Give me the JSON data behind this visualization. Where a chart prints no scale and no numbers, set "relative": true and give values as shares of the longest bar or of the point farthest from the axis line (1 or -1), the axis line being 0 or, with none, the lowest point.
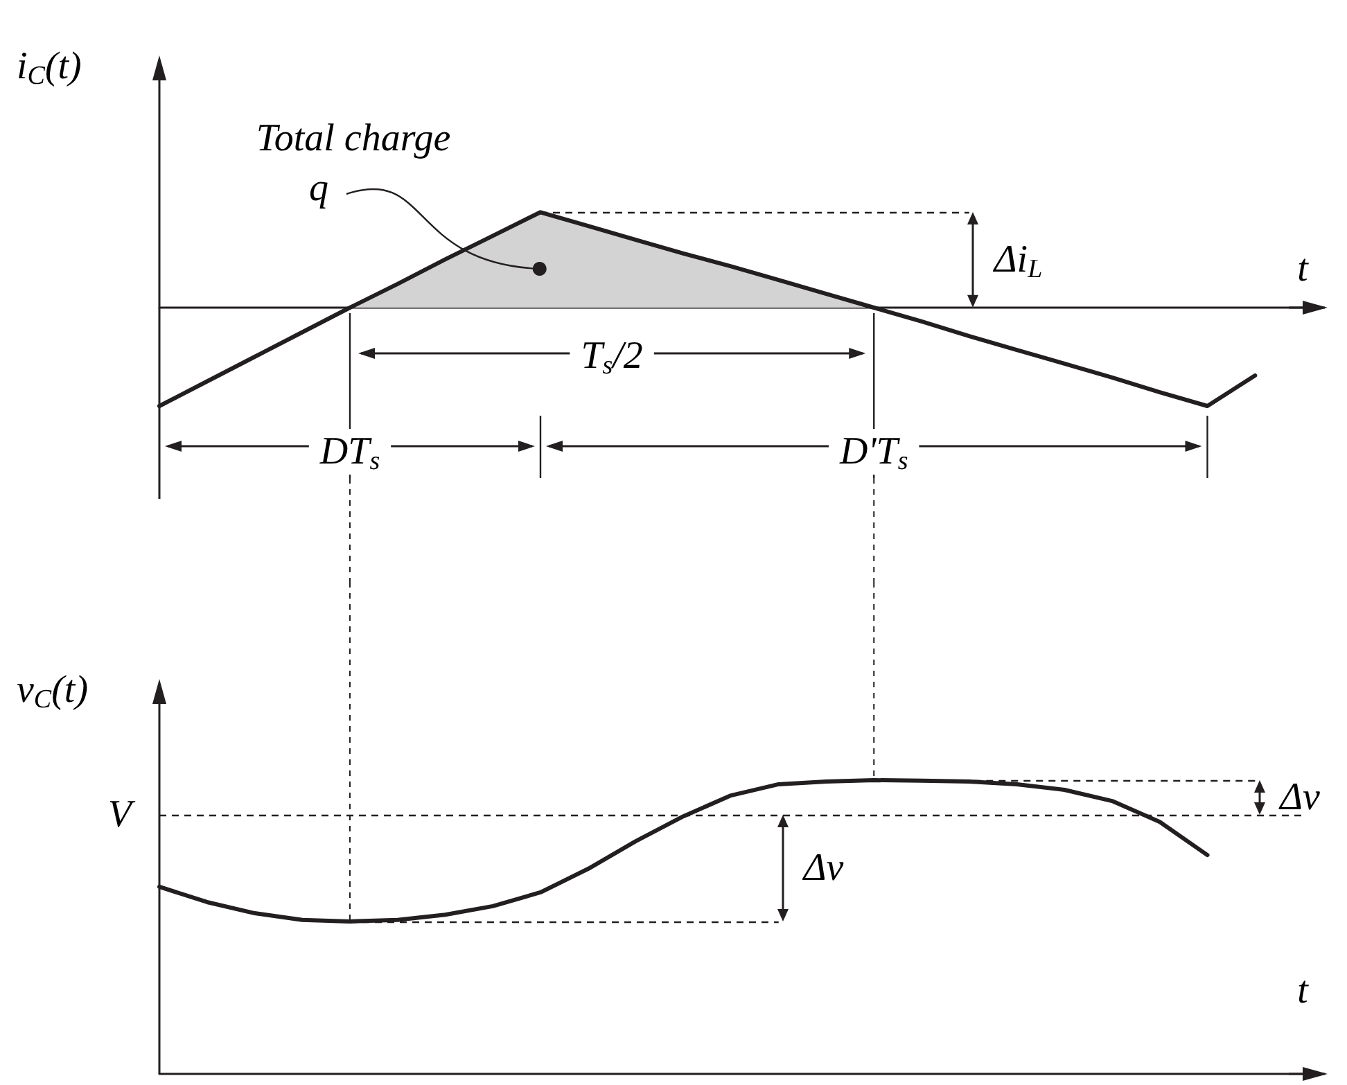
{
  "chart_data": [
    {
      "type": "line",
      "ylabel": "i$_{C}$(t)",
      "xlabel": "t",
      "relative": true,
      "categories": [
        null,
        null,
        null,
        null,
        null,
        null,
        null,
        null,
        null,
        null,
        null,
        null,
        null,
        null,
        null,
        null,
        null,
        null,
        null,
        null,
        null,
        null,
        null,
        null,
        null
      ],
      "series": [
        {
          "color": "#231f20",
          "values": [
            -1,
            -0.75,
            -0.5,
            -0.25,
            0,
            0.24,
            0.49,
            0.73,
            0.97,
            0.83,
            0.69,
            0.55,
            0.42,
            0.28,
            0.14,
            0,
            -0.14,
            -0.29,
            -0.43,
            -0.57,
            -0.71,
            -0.86,
            -1,
            -0.69,
            null
          ]
        },
        {
          "type": "area",
          "color": "#d3d3d3",
          "values": [
            null,
            null,
            null,
            null,
            0,
            0.24,
            0.49,
            0.73,
            0.97,
            0.83,
            0.69,
            0.55,
            0.42,
            0.28,
            0.14,
            0,
            null,
            null,
            null,
            null,
            null,
            null,
            null,
            null,
            null
          ]
        }
      ],
      "ref_lines": [
        {
          "axis": "y",
          "value": 0.97,
          "label": "Δi$_{L}$",
          "line_style": "dashed"
        }
      ],
      "annotations": [
        "Total charge",
        "q",
        "T$_{s}$/2",
        "DT$_{s}$",
        "D'T$_{s}$"
      ]
    },
    {
      "type": "line",
      "ylabel": "v$_{C}$(t)",
      "xlabel": "t",
      "relative": true,
      "categories": [
        null,
        null,
        null,
        null,
        null,
        null,
        null,
        null,
        null,
        null,
        null,
        null,
        null,
        null,
        null,
        null,
        null,
        null,
        null,
        null,
        null,
        null,
        null,
        null,
        null
      ],
      "series": [
        {
          "color": "#231f20",
          "values": [
            0.637,
            0.585,
            0.547,
            0.524,
            0.519,
            0.524,
            0.542,
            0.571,
            0.618,
            0.698,
            0.792,
            0.877,
            0.948,
            0.986,
            0.995,
            1,
            0.998,
            0.995,
            0.986,
            0.967,
            0.929,
            0.858,
            0.745,
            null,
            null
          ]
        }
      ],
      "ref_lines": [
        {
          "axis": "y",
          "value": 0.882,
          "label": "V",
          "line_style": "dashed"
        },
        {
          "axis": "y",
          "value": 1,
          "label": "Δv",
          "line_style": "dashed"
        },
        {
          "axis": "y",
          "value": 0.519,
          "label": "Δv",
          "line_style": "dashed"
        }
      ]
    }
  ]
}
